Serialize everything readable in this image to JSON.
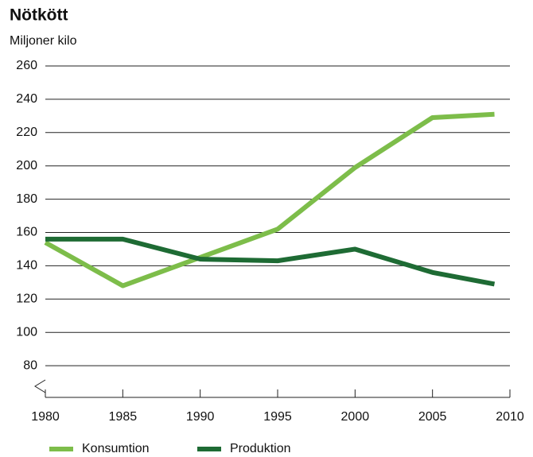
{
  "chart_data": {
    "type": "line",
    "title": "Nötkött",
    "subtitle": "Miljoner kilo",
    "x": [
      1980,
      1985,
      1990,
      1995,
      2000,
      2005,
      2009
    ],
    "series": [
      {
        "name": "Konsumtion",
        "color": "#7dbd4a",
        "values": [
          154,
          128,
          145,
          162,
          199,
          229,
          231
        ]
      },
      {
        "name": "Produktion",
        "color": "#1e6b34",
        "values": [
          156,
          156,
          144,
          143,
          150,
          136,
          129
        ]
      }
    ],
    "xlim": [
      1980,
      2010
    ],
    "xticks": [
      1980,
      1985,
      1990,
      1995,
      2000,
      2005,
      2010
    ],
    "ylim": [
      60,
      260
    ],
    "yticks": [
      80,
      100,
      120,
      140,
      160,
      180,
      200,
      220,
      240,
      260
    ],
    "grid": true,
    "legend": "bottom"
  }
}
